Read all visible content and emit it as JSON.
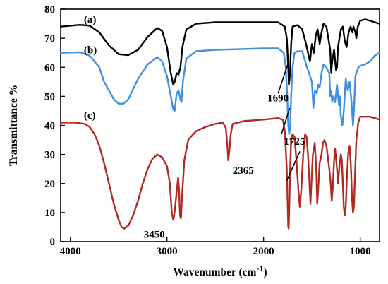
{
  "chart_data": {
    "type": "line",
    "title": "",
    "xlabel": "Wavenumber (cm",
    "xlabel_sup": "-1",
    "xlabel_close": ")",
    "ylabel": "Transmittance %",
    "xlim": [
      4100,
      800
    ],
    "ylim": [
      0,
      80
    ],
    "x_reversed": true,
    "x_ticks": [
      4000,
      3000,
      2000,
      1000
    ],
    "y_ticks": [
      0,
      10,
      20,
      30,
      40,
      50,
      60,
      70,
      80
    ],
    "grid": false,
    "legend": "none",
    "series": [
      {
        "name": "(a)",
        "color": "#000000",
        "points": [
          [
            4100,
            74
          ],
          [
            3900,
            74.6
          ],
          [
            3800,
            74.3
          ],
          [
            3700,
            72
          ],
          [
            3600,
            67.5
          ],
          [
            3500,
            64.5
          ],
          [
            3400,
            64.2
          ],
          [
            3300,
            66
          ],
          [
            3200,
            70.5
          ],
          [
            3100,
            73.5
          ],
          [
            3050,
            72.5
          ],
          [
            3000,
            67
          ],
          [
            2960,
            58
          ],
          [
            2935,
            54
          ],
          [
            2920,
            55
          ],
          [
            2900,
            58
          ],
          [
            2880,
            57.5
          ],
          [
            2860,
            60
          ],
          [
            2840,
            67
          ],
          [
            2800,
            73
          ],
          [
            2700,
            75
          ],
          [
            2500,
            75.5
          ],
          [
            2000,
            75.5
          ],
          [
            1850,
            75.5
          ],
          [
            1780,
            74
          ],
          [
            1760,
            70
          ],
          [
            1745,
            60
          ],
          [
            1738,
            54
          ],
          [
            1728,
            57
          ],
          [
            1715,
            68
          ],
          [
            1700,
            74
          ],
          [
            1650,
            74.5
          ],
          [
            1600,
            73
          ],
          [
            1560,
            68
          ],
          [
            1520,
            62
          ],
          [
            1500,
            68
          ],
          [
            1480,
            65
          ],
          [
            1460,
            71
          ],
          [
            1440,
            73
          ],
          [
            1420,
            68
          ],
          [
            1400,
            72
          ],
          [
            1380,
            75
          ],
          [
            1350,
            74
          ],
          [
            1310,
            66
          ],
          [
            1300,
            58
          ],
          [
            1290,
            62
          ],
          [
            1270,
            66
          ],
          [
            1250,
            59
          ],
          [
            1240,
            60
          ],
          [
            1230,
            67
          ],
          [
            1200,
            73
          ],
          [
            1180,
            74
          ],
          [
            1160,
            69
          ],
          [
            1140,
            67
          ],
          [
            1120,
            72
          ],
          [
            1100,
            74
          ],
          [
            1080,
            72
          ],
          [
            1070,
            74
          ],
          [
            1050,
            72
          ],
          [
            1040,
            70
          ],
          [
            1025,
            74
          ],
          [
            1000,
            76
          ],
          [
            950,
            76.5
          ],
          [
            900,
            76
          ],
          [
            850,
            75.5
          ],
          [
            800,
            75
          ]
        ]
      },
      {
        "name": "(b)",
        "color": "#3f8fe0",
        "points": [
          [
            4100,
            65
          ],
          [
            3900,
            65.2
          ],
          [
            3800,
            64
          ],
          [
            3700,
            60
          ],
          [
            3650,
            55
          ],
          [
            3550,
            49
          ],
          [
            3500,
            47.5
          ],
          [
            3450,
            47.5
          ],
          [
            3400,
            49
          ],
          [
            3300,
            56
          ],
          [
            3200,
            61
          ],
          [
            3100,
            63.5
          ],
          [
            3050,
            62
          ],
          [
            3000,
            57
          ],
          [
            2960,
            50
          ],
          [
            2935,
            45.5
          ],
          [
            2920,
            45
          ],
          [
            2910,
            48
          ],
          [
            2900,
            51
          ],
          [
            2880,
            52
          ],
          [
            2860,
            49
          ],
          [
            2850,
            48
          ],
          [
            2835,
            55
          ],
          [
            2800,
            63
          ],
          [
            2700,
            65.5
          ],
          [
            2500,
            66
          ],
          [
            2000,
            66.5
          ],
          [
            1850,
            66.5
          ],
          [
            1790,
            65
          ],
          [
            1770,
            60
          ],
          [
            1755,
            50
          ],
          [
            1745,
            40
          ],
          [
            1735,
            37
          ],
          [
            1725,
            39
          ],
          [
            1715,
            50
          ],
          [
            1700,
            60
          ],
          [
            1680,
            65
          ],
          [
            1650,
            65.5
          ],
          [
            1600,
            65.5
          ],
          [
            1560,
            61
          ],
          [
            1520,
            57
          ],
          [
            1500,
            55
          ],
          [
            1485,
            46
          ],
          [
            1470,
            52
          ],
          [
            1450,
            51
          ],
          [
            1435,
            54
          ],
          [
            1420,
            53
          ],
          [
            1400,
            58
          ],
          [
            1380,
            61
          ],
          [
            1350,
            60
          ],
          [
            1320,
            58
          ],
          [
            1310,
            50
          ],
          [
            1300,
            52
          ],
          [
            1290,
            48
          ],
          [
            1280,
            50
          ],
          [
            1260,
            48
          ],
          [
            1240,
            54
          ],
          [
            1220,
            47
          ],
          [
            1210,
            50
          ],
          [
            1200,
            43
          ],
          [
            1185,
            40
          ],
          [
            1170,
            45
          ],
          [
            1150,
            56
          ],
          [
            1130,
            52
          ],
          [
            1110,
            55
          ],
          [
            1090,
            48
          ],
          [
            1075,
            40
          ],
          [
            1065,
            45
          ],
          [
            1050,
            57
          ],
          [
            1020,
            60
          ],
          [
            1000,
            60.5
          ],
          [
            950,
            61
          ],
          [
            900,
            62
          ],
          [
            850,
            64
          ],
          [
            800,
            65
          ]
        ]
      },
      {
        "name": "(c)",
        "color": "#b02a22",
        "points": [
          [
            4100,
            41
          ],
          [
            3950,
            41
          ],
          [
            3850,
            40.5
          ],
          [
            3800,
            39.5
          ],
          [
            3750,
            37
          ],
          [
            3700,
            33
          ],
          [
            3650,
            27
          ],
          [
            3600,
            20
          ],
          [
            3550,
            13
          ],
          [
            3500,
            7.5
          ],
          [
            3470,
            5
          ],
          [
            3440,
            4.5
          ],
          [
            3400,
            5.5
          ],
          [
            3350,
            9
          ],
          [
            3300,
            14
          ],
          [
            3250,
            20
          ],
          [
            3200,
            25
          ],
          [
            3150,
            28.5
          ],
          [
            3100,
            30
          ],
          [
            3050,
            29
          ],
          [
            3000,
            26
          ],
          [
            2970,
            20
          ],
          [
            2950,
            10
          ],
          [
            2935,
            7.5
          ],
          [
            2925,
            9
          ],
          [
            2915,
            12
          ],
          [
            2900,
            17
          ],
          [
            2885,
            22
          ],
          [
            2875,
            18
          ],
          [
            2865,
            9
          ],
          [
            2855,
            8
          ],
          [
            2845,
            15
          ],
          [
            2820,
            28
          ],
          [
            2780,
            35
          ],
          [
            2700,
            38
          ],
          [
            2600,
            39.5
          ],
          [
            2500,
            40.5
          ],
          [
            2420,
            41
          ],
          [
            2390,
            39
          ],
          [
            2375,
            33
          ],
          [
            2365,
            28
          ],
          [
            2355,
            31
          ],
          [
            2340,
            37
          ],
          [
            2320,
            40.5
          ],
          [
            2200,
            41.5
          ],
          [
            2000,
            42
          ],
          [
            1850,
            42.5
          ],
          [
            1800,
            42
          ],
          [
            1780,
            38
          ],
          [
            1760,
            25
          ],
          [
            1750,
            12
          ],
          [
            1745,
            5
          ],
          [
            1740,
            4.5
          ],
          [
            1735,
            10
          ],
          [
            1725,
            25
          ],
          [
            1715,
            35
          ],
          [
            1700,
            37
          ],
          [
            1680,
            36
          ],
          [
            1660,
            28
          ],
          [
            1640,
            18
          ],
          [
            1625,
            12
          ],
          [
            1610,
            18
          ],
          [
            1590,
            30
          ],
          [
            1570,
            37
          ],
          [
            1555,
            36
          ],
          [
            1540,
            30
          ],
          [
            1525,
            20
          ],
          [
            1515,
            13
          ],
          [
            1505,
            20
          ],
          [
            1490,
            30
          ],
          [
            1470,
            34
          ],
          [
            1455,
            25
          ],
          [
            1445,
            13
          ],
          [
            1435,
            18
          ],
          [
            1420,
            27
          ],
          [
            1400,
            30
          ],
          [
            1385,
            34
          ],
          [
            1370,
            35
          ],
          [
            1350,
            33
          ],
          [
            1320,
            25
          ],
          [
            1305,
            20
          ],
          [
            1295,
            14
          ],
          [
            1285,
            18
          ],
          [
            1270,
            28
          ],
          [
            1260,
            32
          ],
          [
            1240,
            25
          ],
          [
            1230,
            20
          ],
          [
            1215,
            26
          ],
          [
            1200,
            30
          ],
          [
            1190,
            28
          ],
          [
            1180,
            20
          ],
          [
            1170,
            12
          ],
          [
            1160,
            9
          ],
          [
            1150,
            12
          ],
          [
            1140,
            20
          ],
          [
            1125,
            30
          ],
          [
            1110,
            33
          ],
          [
            1095,
            25
          ],
          [
            1085,
            15
          ],
          [
            1075,
            10
          ],
          [
            1065,
            12
          ],
          [
            1055,
            22
          ],
          [
            1040,
            35
          ],
          [
            1020,
            41
          ],
          [
            1000,
            43
          ],
          [
            950,
            43
          ],
          [
            900,
            43
          ],
          [
            850,
            42.5
          ],
          [
            800,
            42
          ]
        ]
      }
    ],
    "annotations": [
      {
        "text": "1690",
        "label_x": 1960,
        "label_y": 49.5,
        "line": [
          [
            1850,
            51
          ],
          [
            1750,
            61
          ]
        ]
      },
      {
        "text": "1725",
        "label_x": 1790,
        "label_y": 34.5,
        "line": [
          [
            1815,
            37
          ],
          [
            1730,
            46
          ]
        ]
      },
      {
        "text": "2365",
        "label_x": 2320,
        "label_y": 24.5,
        "line": null
      },
      {
        "text": "3450",
        "label_x": 3240,
        "label_y": 2.5,
        "line": null
      }
    ],
    "extra_lines": [
      {
        "from": [
          1625,
          31
        ],
        "to": [
          1760,
          21
        ]
      }
    ],
    "curve_labels": [
      {
        "text": "(a)",
        "x": 3860,
        "y": 76.5
      },
      {
        "text": "(b)",
        "x": 3860,
        "y": 66
      },
      {
        "text": "(c)",
        "x": 3860,
        "y": 43.5
      }
    ]
  }
}
